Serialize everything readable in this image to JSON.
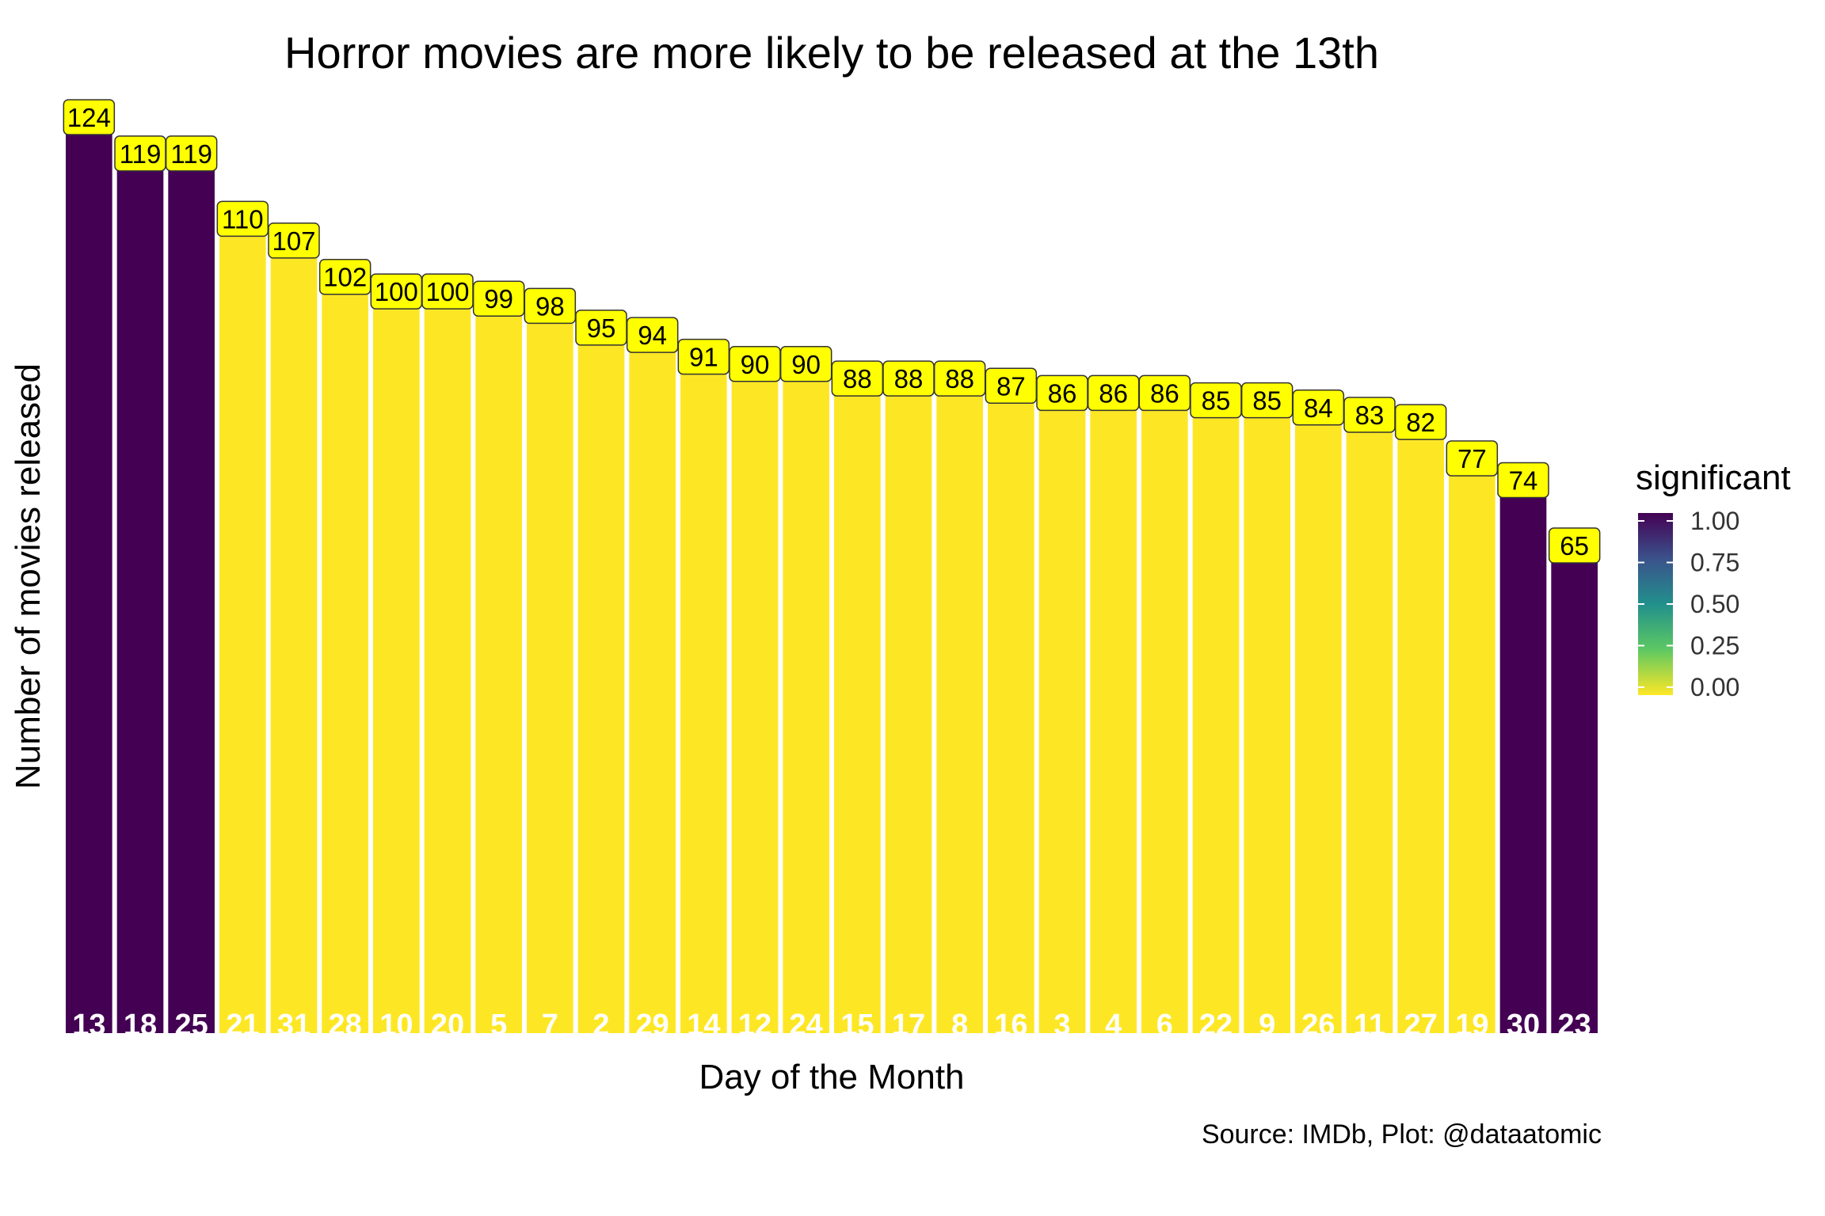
{
  "chart_data": {
    "type": "bar",
    "title": "Horror movies are more likely to be released at the 13th",
    "xlabel": "Day of the Month",
    "ylabel": "Number of movies released",
    "caption": "Source: IMDb, Plot: @dataatomic",
    "categories": [
      "13",
      "18",
      "25",
      "21",
      "31",
      "28",
      "10",
      "20",
      "5",
      "7",
      "2",
      "29",
      "14",
      "12",
      "24",
      "15",
      "17",
      "8",
      "16",
      "3",
      "4",
      "6",
      "22",
      "9",
      "26",
      "11",
      "27",
      "19",
      "30",
      "23"
    ],
    "values": [
      124,
      119,
      119,
      110,
      107,
      102,
      100,
      100,
      99,
      98,
      95,
      94,
      91,
      90,
      90,
      88,
      88,
      88,
      87,
      86,
      86,
      86,
      85,
      85,
      84,
      83,
      82,
      77,
      74,
      65
    ],
    "significant": [
      1,
      1,
      1,
      0,
      0,
      0,
      0,
      0,
      0,
      0,
      0,
      0,
      0,
      0,
      0,
      0,
      0,
      0,
      0,
      0,
      0,
      0,
      0,
      0,
      0,
      0,
      0,
      0,
      1,
      1
    ],
    "value_label_strings": [
      "124",
      "119",
      "119",
      "110",
      "107",
      "102",
      "100",
      "100",
      "99",
      "98",
      "95",
      "94",
      "91",
      "90",
      "90",
      "88",
      "88",
      "88",
      "87",
      "86",
      "86",
      "86",
      "85",
      "85",
      "84",
      "83",
      "82",
      "77",
      "74",
      "65"
    ],
    "colors": {
      "significant": "#440154",
      "not_significant": "#FDE725",
      "label_fill": "#FFFF00"
    },
    "legend": {
      "title": "significant",
      "placement": "right",
      "ticks": [
        "1.00",
        "0.75",
        "0.50",
        "0.25",
        "0.00"
      ],
      "gradient": [
        "#440154",
        "#3B528B",
        "#21908C",
        "#5DC863",
        "#FDE725"
      ]
    },
    "ylim": [
      0,
      124
    ],
    "grid": false
  }
}
